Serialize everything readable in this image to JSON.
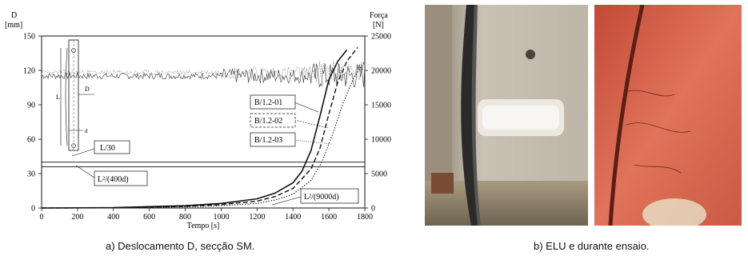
{
  "chart_data": {
    "type": "line",
    "xlabel": "Tempo [s]",
    "ylabel_left": "D",
    "ylabel_left_unit": "[mm]",
    "ylabel_right": "Força",
    "ylabel_right_unit": "[N]",
    "xlim": [
      0,
      1800
    ],
    "ylim_left": [
      0,
      150
    ],
    "ylim_right": [
      0,
      25000
    ],
    "x_ticks": [
      "0",
      "200",
      "400",
      "600",
      "800",
      "1000",
      "1200",
      "1400",
      "1600",
      "1800"
    ],
    "y_left_ticks": [
      "0",
      "30",
      "60",
      "90",
      "120",
      "150"
    ],
    "y_right_ticks": [
      "0",
      "5000",
      "10000",
      "15000",
      "20000",
      "25000"
    ],
    "series": [
      {
        "name": "B/1.2-01",
        "style": "solid",
        "x": [
          0,
          400,
          800,
          1000,
          1200,
          1300,
          1400,
          1450,
          1500,
          1550,
          1600,
          1650,
          1700
        ],
        "y": [
          0,
          0.3,
          2,
          4,
          8,
          13,
          22,
          32,
          50,
          80,
          112,
          128,
          138
        ]
      },
      {
        "name": "B/1.2-02",
        "style": "dashed",
        "x": [
          0,
          400,
          800,
          1000,
          1200,
          1300,
          1400,
          1500,
          1550,
          1600,
          1650,
          1700,
          1760
        ],
        "y": [
          0,
          0.2,
          1.5,
          3,
          6,
          10,
          17,
          34,
          52,
          82,
          110,
          128,
          140
        ]
      },
      {
        "name": "B/1.2-03",
        "style": "dotted",
        "x": [
          0,
          400,
          800,
          1000,
          1200,
          1300,
          1400,
          1500,
          1560,
          1620,
          1680,
          1740,
          1800
        ],
        "y": [
          0,
          0.1,
          1,
          2,
          4,
          7,
          12,
          24,
          40,
          64,
          92,
          114,
          128
        ]
      }
    ],
    "force_series_band": {
      "axis": "right",
      "approx_range_N": [
        18000,
        21000
      ]
    },
    "annotations": [
      {
        "text": "L/30",
        "y": 40
      },
      {
        "text": "L²/(400d)",
        "y": 36
      },
      {
        "text": "L²/(9000d)",
        "y": 2
      }
    ],
    "column_labels": [
      "L",
      "D",
      "d"
    ]
  },
  "captions": {
    "a": "a) Deslocamento D, secção SM.",
    "b": "b) ELU e durante ensaio."
  },
  "colors": {
    "ink": "#111111",
    "photo1_wall": "#c9c2b4",
    "photo2_tint": "#d9624a"
  }
}
